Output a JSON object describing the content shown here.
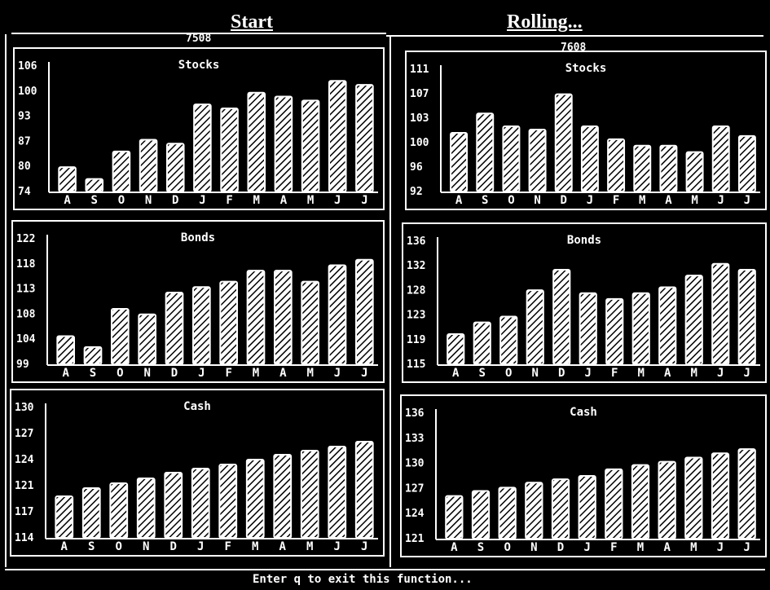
{
  "header": {
    "left_title": "Start",
    "left_subtitle": "7508",
    "right_title": "Rolling...",
    "right_subtitle": "7608"
  },
  "footer": {
    "instruction": "Enter q to exit this function..."
  },
  "colors": {
    "background": "#000000",
    "foreground": "#ffffff"
  },
  "chart_data": [
    {
      "type": "bar",
      "title": "Stocks",
      "panel": "start",
      "categories": [
        "A",
        "S",
        "O",
        "N",
        "D",
        "J",
        "F",
        "M",
        "A",
        "M",
        "J",
        "J"
      ],
      "values": [
        80,
        77,
        84,
        87,
        86,
        96,
        95,
        99,
        98,
        97,
        102,
        101
      ],
      "ylim": [
        74,
        106
      ],
      "yticks": [
        "106",
        "100",
        "93",
        "87",
        "80",
        "74"
      ],
      "xlabel": "",
      "ylabel": ""
    },
    {
      "type": "bar",
      "title": "Bonds",
      "panel": "start",
      "categories": [
        "A",
        "S",
        "O",
        "N",
        "D",
        "J",
        "F",
        "M",
        "A",
        "M",
        "J",
        "J"
      ],
      "values": [
        104,
        102,
        109,
        108,
        112,
        113,
        114,
        116,
        116,
        114,
        117,
        118
      ],
      "ylim": [
        99,
        122
      ],
      "yticks": [
        "122",
        "118",
        "113",
        "108",
        "104",
        "99"
      ],
      "xlabel": "",
      "ylabel": ""
    },
    {
      "type": "bar",
      "title": "Cash",
      "panel": "start",
      "categories": [
        "A",
        "S",
        "O",
        "N",
        "D",
        "J",
        "F",
        "M",
        "A",
        "M",
        "J",
        "J"
      ],
      "values": [
        119,
        120,
        120.6,
        121.2,
        121.9,
        122.4,
        122.9,
        123.5,
        124.1,
        124.6,
        125.1,
        125.7
      ],
      "ylim": [
        114,
        130
      ],
      "yticks": [
        "130",
        "127",
        "124",
        "121",
        "117",
        "114"
      ],
      "xlabel": "",
      "ylabel": ""
    },
    {
      "type": "bar",
      "title": "Stocks",
      "panel": "rolling",
      "categories": [
        "A",
        "S",
        "O",
        "N",
        "D",
        "J",
        "F",
        "M",
        "A",
        "M",
        "J",
        "J"
      ],
      "values": [
        101,
        104,
        102,
        101.5,
        107,
        102,
        100,
        99,
        99,
        98,
        102,
        100.5
      ],
      "ylim": [
        92,
        111
      ],
      "yticks": [
        "111",
        "107",
        "103",
        "100",
        "96",
        "92"
      ],
      "xlabel": "",
      "ylabel": ""
    },
    {
      "type": "bar",
      "title": "Bonds",
      "panel": "rolling",
      "categories": [
        "A",
        "S",
        "O",
        "N",
        "D",
        "J",
        "F",
        "M",
        "A",
        "M",
        "J",
        "J"
      ],
      "values": [
        120,
        122,
        123,
        127.5,
        131,
        127,
        126,
        127,
        128,
        130,
        132,
        131
      ],
      "ylim": [
        115,
        136
      ],
      "yticks": [
        "136",
        "132",
        "128",
        "123",
        "119",
        "115"
      ],
      "xlabel": "",
      "ylabel": ""
    },
    {
      "type": "bar",
      "title": "Cash",
      "panel": "rolling",
      "categories": [
        "A",
        "S",
        "O",
        "N",
        "D",
        "J",
        "F",
        "M",
        "A",
        "M",
        "J",
        "J"
      ],
      "values": [
        126,
        126.6,
        127,
        127.6,
        128,
        128.4,
        129.2,
        129.7,
        130.1,
        130.6,
        131.1,
        131.6
      ],
      "ylim": [
        121,
        136
      ],
      "yticks": [
        "136",
        "133",
        "130",
        "127",
        "124",
        "121"
      ],
      "xlabel": "",
      "ylabel": ""
    }
  ]
}
